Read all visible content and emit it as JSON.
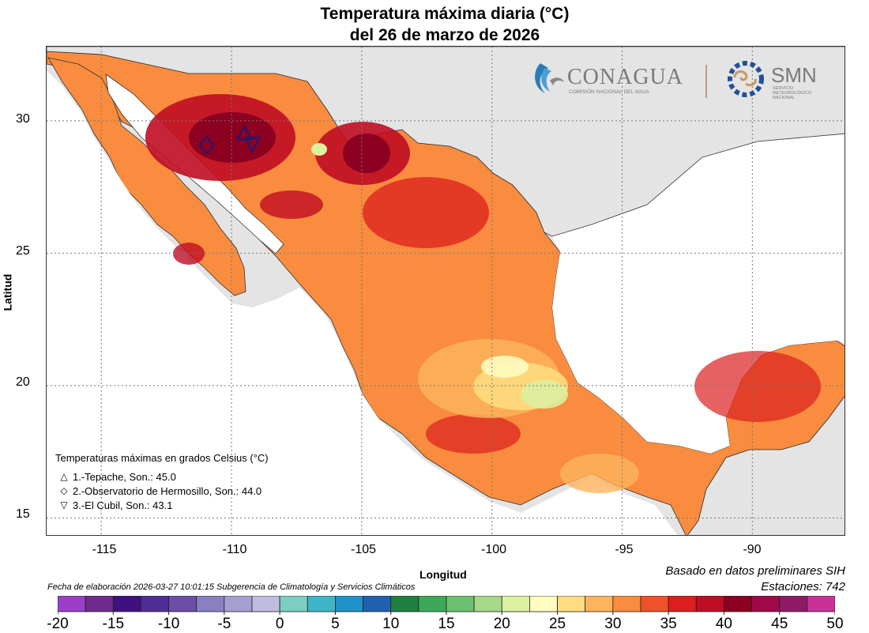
{
  "title_line1": "Temperatura máxima diaria (°C)",
  "title_line2": "del 26 de marzo de 2026",
  "axes": {
    "xlabel": "Longitud",
    "ylabel": "Latitud",
    "lon_ticks": [
      "-115",
      "-110",
      "-105",
      "-100",
      "-95",
      "-90"
    ],
    "lat_ticks": [
      "30",
      "25",
      "20",
      "15"
    ]
  },
  "legend": {
    "heading": "Temperaturas máximas en grados Celsius (°C)",
    "items": [
      {
        "symbol": "△",
        "text": "1.-Tepache, Son.: 45.0"
      },
      {
        "symbol": "◇",
        "text": "2.-Observatorio de Hermosillo, Son.: 44.0"
      },
      {
        "symbol": "▽",
        "text": "3.-El Cubil, Son.: 43.1"
      }
    ]
  },
  "notes": {
    "basis": "Basado en datos preliminares SIH",
    "stations": "Estaciones:  742",
    "fecha": "Fecha de elaboración 2026-03-27 10:01:15 Subgerencia de Climatología y Servicios Climáticos"
  },
  "logos": {
    "conagua_name": "CONAGUA",
    "conagua_sub": "COMISIÓN NACIONAL DEL AGUA",
    "smn_name": "SMN",
    "smn_sub1": "SERVICIO",
    "smn_sub2": "METEOROLÓGICO",
    "smn_sub3": "NACIONAL"
  },
  "colorbar": {
    "labels": [
      "-20",
      "-15",
      "-10",
      "-5",
      "0",
      "5",
      "10",
      "15",
      "20",
      "25",
      "30",
      "35",
      "40",
      "45",
      "50"
    ],
    "colors": [
      "#9b3fc9",
      "#6e2a8c",
      "#3f1080",
      "#4e2e96",
      "#6a4ea6",
      "#8880c0",
      "#a4a0cf",
      "#c0bcdf",
      "#7ccfc0",
      "#3fb6c8",
      "#1f91c9",
      "#2060b0",
      "#1e8040",
      "#3da85a",
      "#6cc070",
      "#a5d888",
      "#dcf0a0",
      "#fffcc0",
      "#ffdc80",
      "#fdb45c",
      "#f98c3e",
      "#f0502a",
      "#dc1e1e",
      "#c00c24",
      "#8c0020",
      "#a00848",
      "#8e1a66",
      "#c83296"
    ]
  },
  "stations": [
    {
      "name": "Tepache",
      "lon": -109.5,
      "lat": 29.5
    },
    {
      "name": "Observatorio de Hermosillo",
      "lon": -110.95,
      "lat": 29.08
    },
    {
      "name": "El Cubil",
      "lon": -109.2,
      "lat": 29.15
    }
  ]
}
